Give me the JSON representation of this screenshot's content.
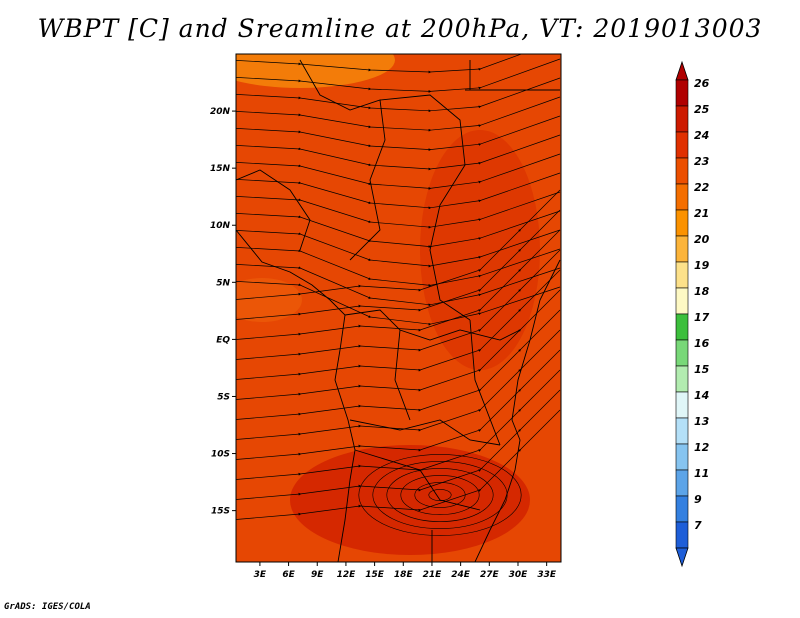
{
  "title": "WBPT [C] and Sreamline at 200hPa, VT: 2019013003",
  "credit": "GrADS: IGES/COLA",
  "map": {
    "lat_ticks": [
      "20N",
      "15N",
      "10N",
      "5N",
      "EQ",
      "5S",
      "10S",
      "15S"
    ],
    "lat_values": [
      20,
      15,
      10,
      5,
      0,
      -5,
      -10,
      -15
    ],
    "lon_ticks": [
      "3E",
      "6E",
      "9E",
      "12E",
      "15E",
      "18E",
      "21E",
      "24E",
      "27E",
      "30E",
      "33E"
    ],
    "lon_values": [
      3,
      6,
      9,
      12,
      15,
      18,
      21,
      24,
      27,
      30,
      33
    ],
    "lon_range": [
      0.5,
      34.5
    ],
    "lat_range": [
      -19.5,
      25
    ]
  },
  "colorbar": {
    "labels": [
      "26",
      "25",
      "24",
      "23",
      "22",
      "21",
      "20",
      "19",
      "18",
      "17",
      "16",
      "15",
      "14",
      "13",
      "12",
      "11",
      "9",
      "7"
    ],
    "colors": [
      "#b00000",
      "#cd1a00",
      "#e03000",
      "#ec4f00",
      "#f46e00",
      "#fb9200",
      "#fcb43a",
      "#fde18a",
      "#fef9c4",
      "#3cbf3c",
      "#78d878",
      "#b2ecb0",
      "#e0f6f8",
      "#b4e0f8",
      "#86c4f0",
      "#5ca4e8",
      "#3480e0",
      "#1e5ed8"
    ]
  }
}
